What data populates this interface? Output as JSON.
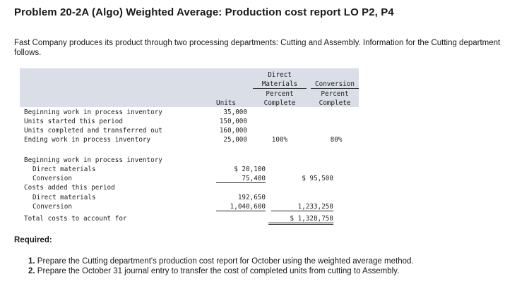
{
  "title": "Problem 20-2A (Algo) Weighted Average: Production cost report LO P2, P4",
  "intro": "Fast Company produces its product through two processing departments: Cutting and Assembly. Information for the Cutting department follows.",
  "table": {
    "headers": {
      "units": "Units",
      "dm_line1": "Direct",
      "dm_line2": "Materials",
      "dm_line3": "Percent",
      "dm_line4": "Complete",
      "conv_line1": "Conversion",
      "conv_line2": "Percent",
      "conv_line3": "Complete"
    },
    "unit_rows": [
      {
        "label": "Beginning work in process inventory",
        "units": "35,000",
        "dm": "",
        "conv": ""
      },
      {
        "label": "Units started this period",
        "units": "150,000",
        "dm": "",
        "conv": ""
      },
      {
        "label": "Units completed and transferred out",
        "units": "160,000",
        "dm": "",
        "conv": ""
      },
      {
        "label": "Ending work in process inventory",
        "units": "25,000",
        "dm": "100%",
        "conv": "80%"
      }
    ],
    "cost_rows": [
      {
        "label": "Beginning work in process inventory",
        "col1": "",
        "col2": ""
      },
      {
        "label": "Direct materials",
        "col1": "$ 20,100",
        "col2": ""
      },
      {
        "label": "Conversion",
        "col1": "75,400",
        "col2": "$ 95,500"
      },
      {
        "label": "Costs added this period",
        "col1": "",
        "col2": ""
      },
      {
        "label": "Direct materials",
        "col1": "192,650",
        "col2": ""
      },
      {
        "label": "Conversion",
        "col1": "1,040,600",
        "col2": "1,233,250"
      },
      {
        "label": "Total costs to account for",
        "col1": "",
        "col2": "$ 1,328,750"
      }
    ]
  },
  "required": {
    "heading": "Required:",
    "items": [
      {
        "num": "1.",
        "text": "Prepare the Cutting department's production cost report for October using the weighted average method."
      },
      {
        "num": "2.",
        "text": "Prepare the October 31 journal entry to transfer the cost of  completed units from cutting to Assembly."
      }
    ]
  }
}
